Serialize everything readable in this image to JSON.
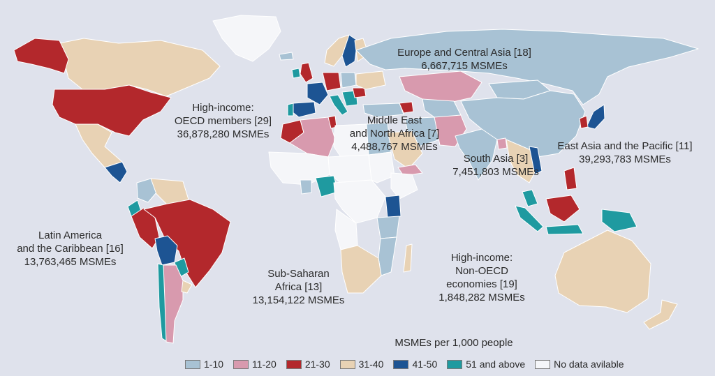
{
  "colors": {
    "ocean": "#dfe2ec",
    "border": "#ffffff",
    "c1_10": "#a8c2d4",
    "c11_20": "#d89aae",
    "c21_30": "#b3282c",
    "c31_40": "#e8d2b4",
    "c41_50": "#1d5493",
    "c51_above": "#1f9aa0",
    "no_data": "#f5f6f9"
  },
  "legend": {
    "title": "MSMEs per 1,000 people",
    "items": [
      {
        "key": "c1_10",
        "label": "1-10"
      },
      {
        "key": "c11_20",
        "label": "11-20"
      },
      {
        "key": "c21_30",
        "label": "21-30"
      },
      {
        "key": "c31_40",
        "label": "31-40"
      },
      {
        "key": "c41_50",
        "label": "41-50"
      },
      {
        "key": "c51_above",
        "label": "51 and above"
      },
      {
        "key": "no_data",
        "label": "No data avilable"
      }
    ]
  },
  "regions": [
    {
      "id": "eca",
      "lines": [
        "Europe and Central Asia [18]",
        "6,667,715 MSMEs"
      ]
    },
    {
      "id": "oecd",
      "lines": [
        "High-income:",
        "OECD members [29]",
        "36,878,280 MSMEs"
      ]
    },
    {
      "id": "mena",
      "lines": [
        "Middle East",
        "and North Africa [7]",
        "4,488,767 MSMEs"
      ]
    },
    {
      "id": "sa",
      "lines": [
        "South Asia [3]",
        "7,451,803 MSMEs"
      ]
    },
    {
      "id": "eap",
      "lines": [
        "East Asia and the Pacific [11]",
        "39,293,783 MSMEs"
      ]
    },
    {
      "id": "lac",
      "lines": [
        "Latin America",
        "and the Caribbean [16]",
        "13,763,465 MSMEs"
      ]
    },
    {
      "id": "ssa",
      "lines": [
        "Sub-Saharan",
        "Africa [13]",
        "13,154,122 MSMEs"
      ]
    },
    {
      "id": "nonoecd",
      "lines": [
        "High-income:",
        "Non-OECD",
        "economies [19]",
        "1,848,282 MSMEs"
      ]
    }
  ],
  "countries": [
    {
      "name": "greenland",
      "color": "no_data"
    },
    {
      "name": "canada",
      "color": "c31_40"
    },
    {
      "name": "alaska",
      "color": "c21_30"
    },
    {
      "name": "usa",
      "color": "c21_30"
    },
    {
      "name": "mexico",
      "color": "c31_40"
    },
    {
      "name": "central-america",
      "color": "c41_50"
    },
    {
      "name": "colombia",
      "color": "c1_10"
    },
    {
      "name": "venezuela",
      "color": "c31_40"
    },
    {
      "name": "ecuador",
      "color": "c51_above"
    },
    {
      "name": "peru",
      "color": "c21_30"
    },
    {
      "name": "brazil",
      "color": "c21_30"
    },
    {
      "name": "bolivia",
      "color": "c41_50"
    },
    {
      "name": "paraguay",
      "color": "c51_above"
    },
    {
      "name": "chile",
      "color": "c51_above"
    },
    {
      "name": "argentina",
      "color": "c11_20"
    },
    {
      "name": "uruguay",
      "color": "c31_40"
    },
    {
      "name": "iceland",
      "color": "c1_10"
    },
    {
      "name": "norway",
      "color": "c31_40"
    },
    {
      "name": "sweden",
      "color": "c41_50"
    },
    {
      "name": "finland",
      "color": "c31_40"
    },
    {
      "name": "uk",
      "color": "c21_30"
    },
    {
      "name": "ireland",
      "color": "c51_above"
    },
    {
      "name": "france",
      "color": "c41_50"
    },
    {
      "name": "spain",
      "color": "c41_50"
    },
    {
      "name": "portugal",
      "color": "c51_above"
    },
    {
      "name": "germany",
      "color": "c21_30"
    },
    {
      "name": "poland",
      "color": "c1_10"
    },
    {
      "name": "italy",
      "color": "c51_above"
    },
    {
      "name": "balkans",
      "color": "c51_above"
    },
    {
      "name": "romania",
      "color": "c21_30"
    },
    {
      "name": "ukraine",
      "color": "c31_40"
    },
    {
      "name": "russia",
      "color": "c1_10"
    },
    {
      "name": "kazakhstan",
      "color": "c11_20"
    },
    {
      "name": "central-asia",
      "color": "c1_10"
    },
    {
      "name": "turkey",
      "color": "c1_10"
    },
    {
      "name": "caucasus",
      "color": "c21_30"
    },
    {
      "name": "mongolia",
      "color": "c1_10"
    },
    {
      "name": "china",
      "color": "c1_10"
    },
    {
      "name": "japan",
      "color": "c41_50"
    },
    {
      "name": "korea",
      "color": "c21_30"
    },
    {
      "name": "iran",
      "color": "c1_10"
    },
    {
      "name": "afghanistan-pakistan",
      "color": "c11_20"
    },
    {
      "name": "india",
      "color": "c1_10"
    },
    {
      "name": "bangladesh",
      "color": "c11_20"
    },
    {
      "name": "southeast-asia",
      "color": "c31_40"
    },
    {
      "name": "vietnam",
      "color": "c41_50"
    },
    {
      "name": "philippines",
      "color": "c21_30"
    },
    {
      "name": "malaysia",
      "color": "c51_above"
    },
    {
      "name": "borneo",
      "color": "c21_30"
    },
    {
      "name": "sumatra",
      "color": "c51_above"
    },
    {
      "name": "java",
      "color": "c51_above"
    },
    {
      "name": "new-guinea",
      "color": "c51_above"
    },
    {
      "name": "australia",
      "color": "c31_40"
    },
    {
      "name": "new-zealand",
      "color": "c31_40"
    },
    {
      "name": "morocco",
      "color": "c21_30"
    },
    {
      "name": "algeria",
      "color": "c11_20"
    },
    {
      "name": "tunisia",
      "color": "c21_30"
    },
    {
      "name": "libya",
      "color": "no_data"
    },
    {
      "name": "egypt",
      "color": "c1_10"
    },
    {
      "name": "saudi-arabia",
      "color": "c31_40"
    },
    {
      "name": "yemen",
      "color": "c11_20"
    },
    {
      "name": "west-africa",
      "color": "no_data"
    },
    {
      "name": "sahel",
      "color": "no_data"
    },
    {
      "name": "nigeria",
      "color": "c51_above"
    },
    {
      "name": "ghana",
      "color": "c1_10"
    },
    {
      "name": "sudan",
      "color": "no_data"
    },
    {
      "name": "ethiopia",
      "color": "no_data"
    },
    {
      "name": "kenya",
      "color": "c41_50"
    },
    {
      "name": "tanzania",
      "color": "c1_10"
    },
    {
      "name": "central-africa",
      "color": "no_data"
    },
    {
      "name": "angola",
      "color": "no_data"
    },
    {
      "name": "mozambique",
      "color": "c1_10"
    },
    {
      "name": "south-africa",
      "color": "c31_40"
    },
    {
      "name": "madagascar",
      "color": "c31_40"
    }
  ]
}
